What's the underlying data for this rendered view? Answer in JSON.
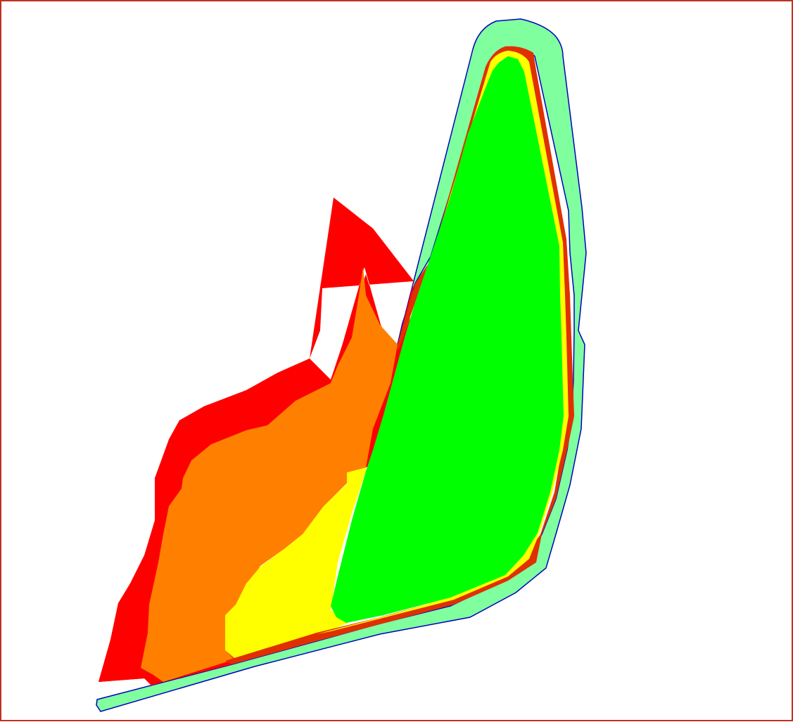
{
  "map": {
    "zones": [
      {
        "id": "outer-buffer",
        "fill": "#80ff9f",
        "stroke": "#0000c0"
      },
      {
        "id": "red-zone",
        "fill": "#ff0000"
      },
      {
        "id": "orange-zone",
        "fill": "#ff8000"
      },
      {
        "id": "yellow-zone",
        "fill": "#ffff00"
      },
      {
        "id": "green-zone",
        "fill": "#00ff00"
      }
    ],
    "colors": {
      "frame": "#c03020",
      "outline": "#0000c0",
      "rim": "#e03000"
    }
  }
}
